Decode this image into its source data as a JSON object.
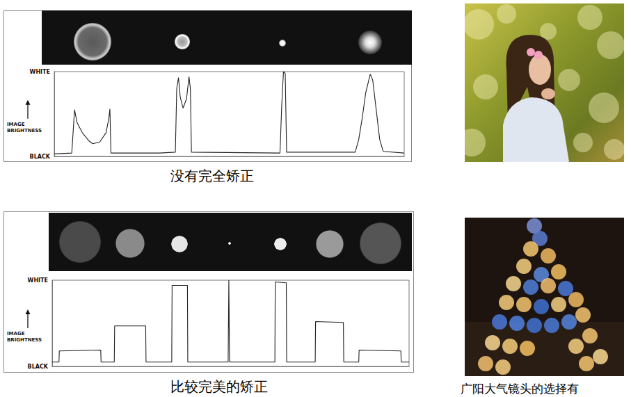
{
  "chart_data": [
    {
      "type": "line",
      "title": "没有完全矫正",
      "ylabel": "IMAGE BRIGHTNESS",
      "color": "#222222",
      "x": [
        0,
        5,
        5.8,
        6.5,
        8,
        10,
        11,
        13,
        14.8,
        15.6,
        15.9,
        16.2,
        30,
        34.6,
        35,
        35.5,
        36,
        36.8,
        37.8,
        38.5,
        38.9,
        39.2,
        64.5,
        65,
        65.5,
        66,
        66.4,
        86,
        87,
        88,
        89,
        90.3,
        91,
        92,
        93,
        94,
        100
      ],
      "values": [
        3,
        4,
        55,
        40,
        28,
        18,
        15,
        17,
        28,
        45,
        56,
        4,
        4,
        5,
        80,
        93,
        70,
        57,
        68,
        94,
        80,
        5,
        4,
        60,
        100,
        98,
        5,
        5,
        20,
        45,
        75,
        97,
        90,
        55,
        20,
        6,
        4
      ],
      "xlim": [
        0,
        100
      ],
      "ylim": [
        0,
        100
      ],
      "yticks": [
        {
          "value": 0,
          "label": "BLACK"
        },
        {
          "value": 100,
          "label": "WHITE"
        }
      ],
      "tick_labels": "y",
      "grid": false
    },
    {
      "type": "line",
      "title": "比较完美的矫正",
      "ylabel": "IMAGE BRIGHTNESS",
      "color": "#222222",
      "x": [
        0,
        1.9,
        2,
        13.6,
        13.7,
        17.4,
        17.5,
        26.2,
        26.3,
        33.5,
        33.6,
        37.9,
        38,
        49.3,
        49.5,
        49.7,
        62.4,
        62.5,
        65.6,
        65.7,
        73.7,
        73.8,
        81.6,
        81.7,
        85.9,
        86,
        97.7,
        97.8,
        100
      ],
      "values": [
        5,
        5,
        18,
        19,
        5,
        5,
        47,
        47,
        5,
        5,
        94,
        94,
        5,
        5,
        100,
        5,
        5,
        98,
        97,
        5,
        5,
        52,
        51,
        5,
        5,
        19,
        18,
        5,
        5
      ],
      "xlim": [
        0,
        100
      ],
      "ylim": [
        0,
        100
      ],
      "yticks": [
        {
          "value": 0,
          "label": "BLACK"
        },
        {
          "value": 100,
          "label": "WHITE"
        }
      ],
      "tick_labels": "y",
      "grid": false
    }
  ],
  "photo_caption": "广阳大气镜头的选择有"
}
